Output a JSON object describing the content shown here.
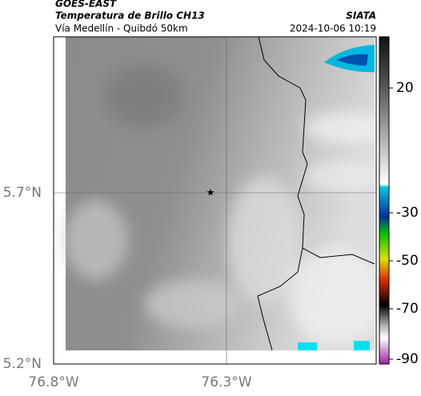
{
  "header": {
    "title": "GOES-EAST",
    "subtitle": "Temperatura de Brillo CH13",
    "route": "Vía Medellín - Quibdó 50km",
    "source": "SIATA",
    "datetime": "2024-10-06 10:19"
  },
  "axes": {
    "y_labels": [
      "5.7°N",
      "5.2°N"
    ],
    "x_labels": [
      "76.8°W",
      "76.3°W"
    ]
  },
  "colorbar": {
    "labels": [
      "20",
      "-30",
      "-50",
      "-70",
      "-90"
    ]
  }
}
